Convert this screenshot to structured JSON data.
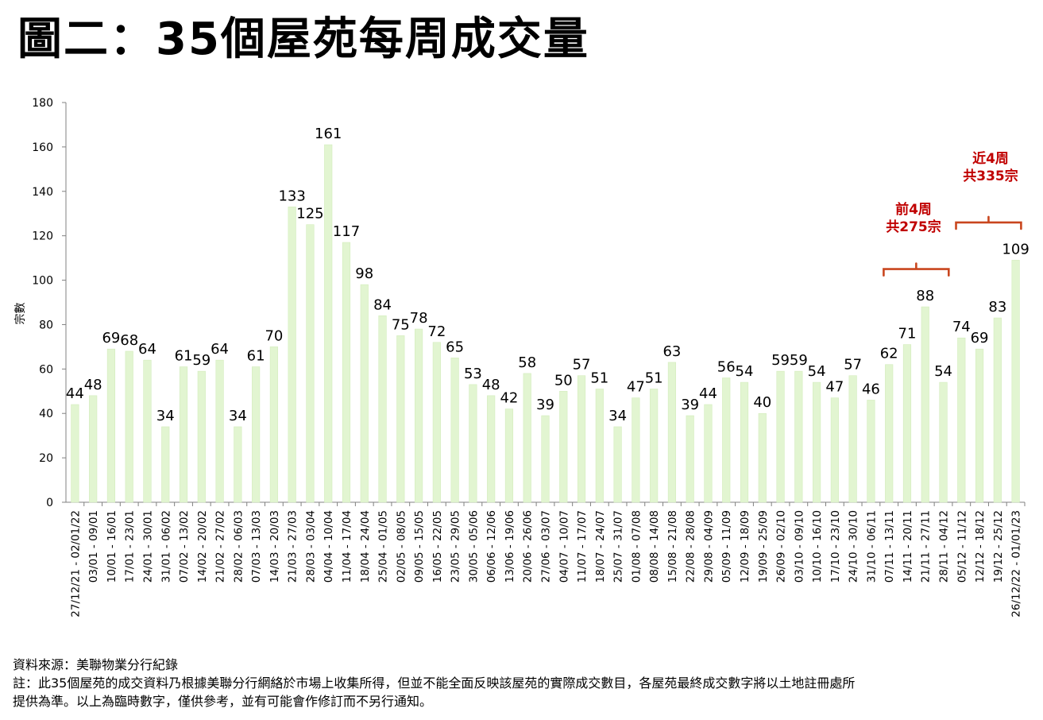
{
  "title": "圖二：35個屋苑每周成交量",
  "footer": {
    "source": "資料來源：美聯物業分行紀錄",
    "note_line1": "註：此35個屋苑的成交資料乃根據美聯分行網絡於市場上收集所得，但並不能全面反映該屋苑的實際成交數目，各屋苑最終成交數字將以土地註冊處所",
    "note_line2": "提供為準。以上為臨時數字，僅供參考，並有可能會作修訂而不另行通知。"
  },
  "colors": {
    "bar": "#e2f5d1",
    "bar_edge": "#d3ecbc",
    "annotation": "#c00000",
    "bracket": "#c9461e"
  },
  "annotations": {
    "prev4": {
      "line1": "前4周",
      "line2": "共275宗"
    },
    "last4": {
      "line1": "近4周",
      "line2": "共335宗"
    }
  },
  "chart_data": {
    "type": "bar",
    "title": "圖二：35個屋苑每周成交量",
    "xlabel": "",
    "ylabel": "宗數",
    "ylim": [
      0,
      180
    ],
    "yticks": [
      0,
      20,
      40,
      60,
      80,
      100,
      120,
      140,
      160,
      180
    ],
    "grid": false,
    "categories": [
      "27/12/21 - 02/01/22",
      "03/01 - 09/01",
      "10/01 - 16/01",
      "17/01 - 23/01",
      "24/01 - 30/01",
      "31/01 - 06/02",
      "07/02 - 13/02",
      "14/02 - 20/02",
      "21/02 - 27/02",
      "28/02 - 06/03",
      "07/03 - 13/03",
      "14/03 - 20/03",
      "21/03 - 27/03",
      "28/03 - 03/04",
      "04/04 - 10/04",
      "11/04 - 17/04",
      "18/04 - 24/04",
      "25/04 - 01/05",
      "02/05 - 08/05",
      "09/05 - 15/05",
      "16/05 - 22/05",
      "23/05 - 29/05",
      "30/05 - 05/06",
      "06/06 - 12/06",
      "13/06 - 19/06",
      "20/06 - 26/06",
      "27/06 - 03/07",
      "04/07 - 10/07",
      "11/07 - 17/07",
      "18/07 - 24/07",
      "25/07 - 31/07",
      "01/08 - 07/08",
      "08/08 - 14/08",
      "15/08 - 21/08",
      "22/08 - 28/08",
      "29/08 - 04/09",
      "05/09 - 11/09",
      "12/09 - 18/09",
      "19/09 - 25/09",
      "26/09 - 02/10",
      "03/10 - 09/10",
      "10/10 - 16/10",
      "17/10 - 23/10",
      "24/10 - 30/10",
      "31/10 - 06/11",
      "07/11 - 13/11",
      "14/11 - 20/11",
      "21/11 - 27/11",
      "28/11 - 04/12",
      "05/12 - 11/12",
      "12/12 - 18/12",
      "19/12 - 25/12",
      "26/12/22 - 01/01/23"
    ],
    "values": [
      44,
      48,
      69,
      68,
      64,
      34,
      61,
      59,
      64,
      34,
      61,
      70,
      133,
      125,
      161,
      117,
      98,
      84,
      75,
      78,
      72,
      65,
      53,
      48,
      42,
      58,
      39,
      50,
      57,
      51,
      34,
      47,
      51,
      63,
      39,
      44,
      56,
      54,
      40,
      59,
      59,
      54,
      47,
      57,
      46,
      62,
      71,
      88,
      54,
      74,
      69,
      83,
      109
    ]
  }
}
